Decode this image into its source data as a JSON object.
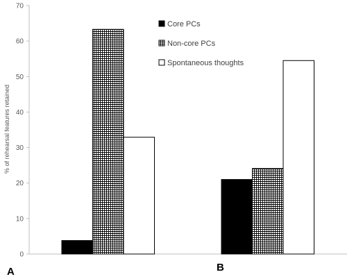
{
  "chart_data": {
    "type": "bar",
    "categories": [
      "A",
      "B"
    ],
    "series": [
      {
        "name": "Core PCs",
        "values": [
          3.8,
          21.0
        ],
        "fill": "solid-black"
      },
      {
        "name": "Non-core PCs",
        "values": [
          63.3,
          24.1
        ],
        "fill": "crosshatch"
      },
      {
        "name": "Spontaneous thoughts",
        "values": [
          32.9,
          54.5
        ],
        "fill": "white"
      }
    ],
    "title": "",
    "xlabel": "",
    "ylabel": "% of rehearsal features retained",
    "ylim": [
      0,
      70
    ],
    "yticks": [
      0,
      10,
      20,
      30,
      40,
      50,
      60,
      70
    ],
    "grid": false,
    "legend_position": "top-center",
    "colors": {
      "axis": "#bfbfbf",
      "bar_stroke": "#000000",
      "text": "#595959"
    }
  }
}
